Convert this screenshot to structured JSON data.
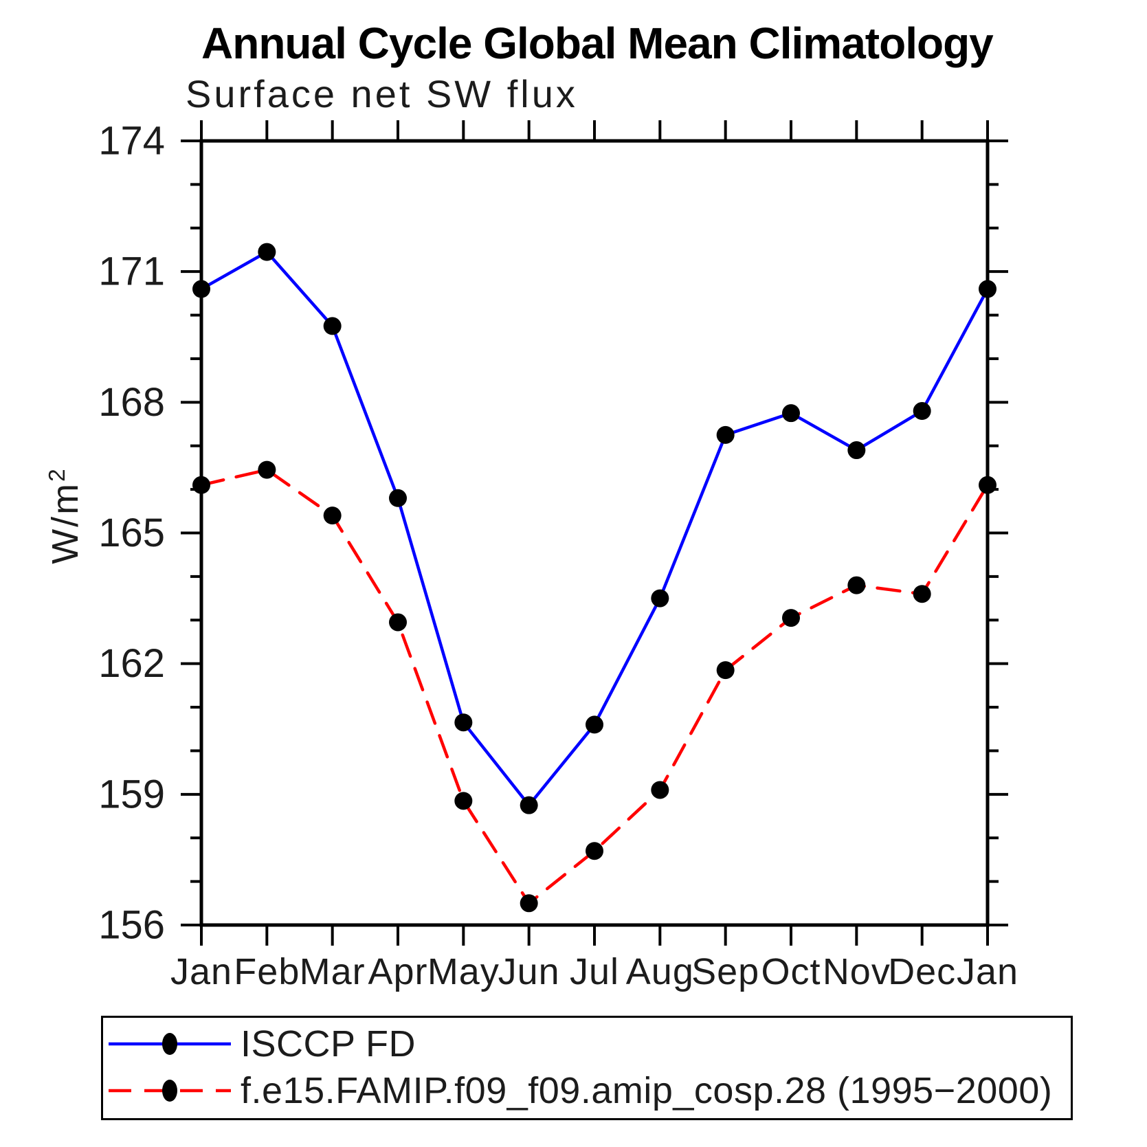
{
  "chart_data": {
    "type": "line",
    "title": "Annual Cycle Global Mean Climatology",
    "subtitle": "Surface net SW flux",
    "ylabel_base": "W/m",
    "ylabel_sup": "2",
    "categories": [
      "Jan",
      "Feb",
      "Mar",
      "Apr",
      "May",
      "Jun",
      "Jul",
      "Aug",
      "Sep",
      "Oct",
      "Nov",
      "Dec",
      "Jan"
    ],
    "ylim": [
      156,
      174
    ],
    "ytick_major": [
      156,
      159,
      162,
      165,
      168,
      171,
      174
    ],
    "ytick_minor_step": 1,
    "grid": false,
    "legend_position": "bottom",
    "axis_color": "#000000",
    "marker_color": "#000000",
    "series": [
      {
        "name": "ISCCP FD",
        "color": "#0000ff",
        "style": "solid",
        "marker": "circle",
        "values": [
          170.6,
          171.45,
          169.75,
          165.8,
          160.65,
          158.75,
          160.6,
          163.5,
          167.25,
          167.75,
          166.9,
          167.8,
          170.6
        ]
      },
      {
        "name": "f.e15.FAMIP.f09_f09.amip_cosp.28 (1995−2000)",
        "color": "#ff0000",
        "style": "dashed",
        "marker": "circle",
        "values": [
          166.1,
          166.45,
          165.4,
          162.95,
          158.85,
          156.5,
          157.7,
          159.1,
          161.85,
          163.05,
          163.8,
          163.6,
          166.1
        ]
      }
    ]
  }
}
